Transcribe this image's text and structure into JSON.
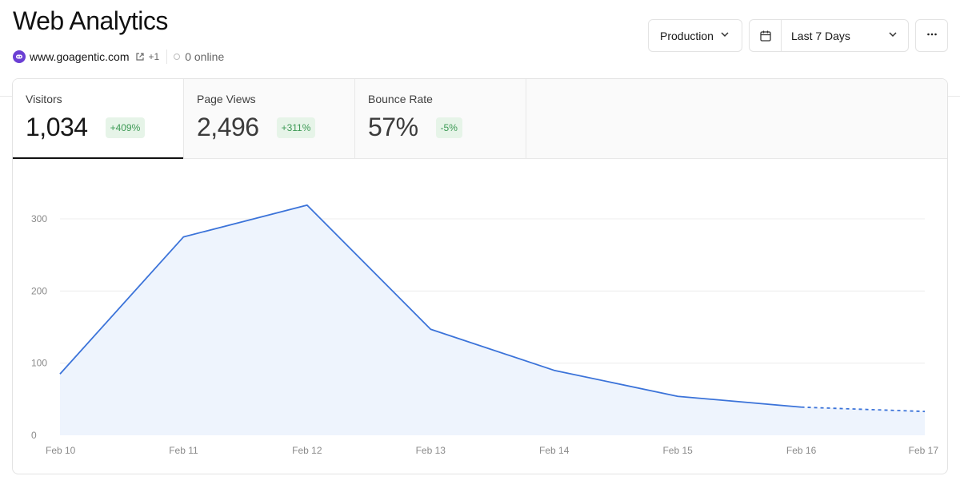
{
  "header": {
    "title": "Web Analytics",
    "site": "www.goagentic.com",
    "extra_sites": "+1",
    "online": "0 online"
  },
  "controls": {
    "environment": "Production",
    "date_range": "Last 7 Days"
  },
  "metrics": [
    {
      "label": "Visitors",
      "value": "1,034",
      "change": "+409%"
    },
    {
      "label": "Page Views",
      "value": "2,496",
      "change": "+311%"
    },
    {
      "label": "Bounce Rate",
      "value": "57%",
      "change": "-5%"
    }
  ],
  "colors": {
    "line": "#3b73d9",
    "fill": "#eef4fd",
    "badge_bg": "#e6f4e8",
    "badge_text": "#3d9a55",
    "grid": "#ececec",
    "axis_text": "#8a8a8a"
  },
  "chart_data": {
    "type": "area",
    "categories": [
      "Feb 10",
      "Feb 11",
      "Feb 12",
      "Feb 13",
      "Feb 14",
      "Feb 15",
      "Feb 16",
      "Feb 17"
    ],
    "values": [
      85,
      275,
      319,
      147,
      90,
      54,
      39,
      33
    ],
    "dashed_from_index": 6,
    "ylim": [
      0,
      300
    ],
    "yticks": [
      0,
      100,
      200,
      300
    ],
    "grid": true
  }
}
